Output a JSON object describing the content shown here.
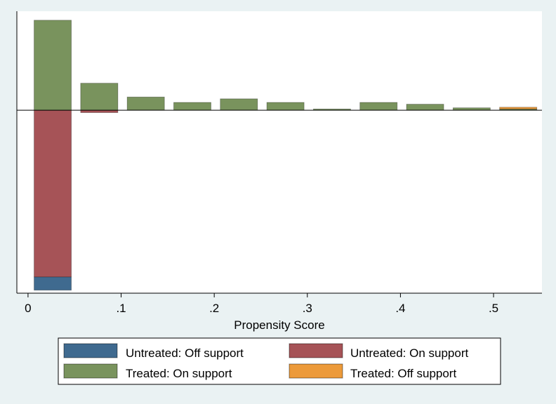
{
  "chart_data": {
    "type": "bar",
    "xlabel": "Propensity Score",
    "xlim": [
      -0.012,
      0.552
    ],
    "x_ticks": [
      {
        "value": 0,
        "label": "0"
      },
      {
        "value": 0.1,
        "label": ".1"
      },
      {
        "value": 0.2,
        "label": ".2"
      },
      {
        "value": 0.3,
        "label": ".3"
      },
      {
        "value": 0.4,
        "label": ".4"
      },
      {
        "value": 0.5,
        "label": ".5"
      }
    ],
    "y_axis_labels_shown": false,
    "ylim": [
      -0.305,
      0.165
    ],
    "bin_width": 0.04,
    "bins": [
      {
        "x0": 0.0065,
        "x1": 0.0465
      },
      {
        "x0": 0.0565,
        "x1": 0.0965
      },
      {
        "x0": 0.1065,
        "x1": 0.1465
      },
      {
        "x0": 0.1565,
        "x1": 0.1965
      },
      {
        "x0": 0.2065,
        "x1": 0.2465
      },
      {
        "x0": 0.2565,
        "x1": 0.2965
      },
      {
        "x0": 0.3065,
        "x1": 0.3465
      },
      {
        "x0": 0.3565,
        "x1": 0.3965
      },
      {
        "x0": 0.4065,
        "x1": 0.4465
      },
      {
        "x0": 0.4565,
        "x1": 0.4965
      },
      {
        "x0": 0.5065,
        "x1": 0.5465
      }
    ],
    "series": [
      {
        "name": "Untreated: Off support",
        "color": "#3f6a8f",
        "side": "below",
        "values": [
          0.022,
          0,
          0,
          0,
          0,
          0,
          0,
          0,
          0,
          0,
          0
        ]
      },
      {
        "name": "Untreated: On support",
        "color": "#a65357",
        "side": "below",
        "values": [
          0.278,
          0.004,
          0,
          0,
          0,
          0,
          0,
          0,
          0,
          0,
          0
        ]
      },
      {
        "name": "Treated: On support",
        "color": "#79935d",
        "side": "above",
        "values": [
          0.15,
          0.045,
          0.022,
          0.013,
          0.019,
          0.013,
          0.002,
          0.013,
          0.01,
          0.004,
          0.002
        ]
      },
      {
        "name": "Treated: Off support",
        "color": "#ec9a3a",
        "side": "above",
        "values": [
          0,
          0,
          0,
          0,
          0,
          0,
          0,
          0,
          0,
          0,
          0.003
        ]
      }
    ],
    "legend": {
      "position": "bottom",
      "order": [
        "Untreated: Off support",
        "Untreated: On support",
        "Treated: On support",
        "Treated: Off support"
      ]
    },
    "grid": false
  }
}
